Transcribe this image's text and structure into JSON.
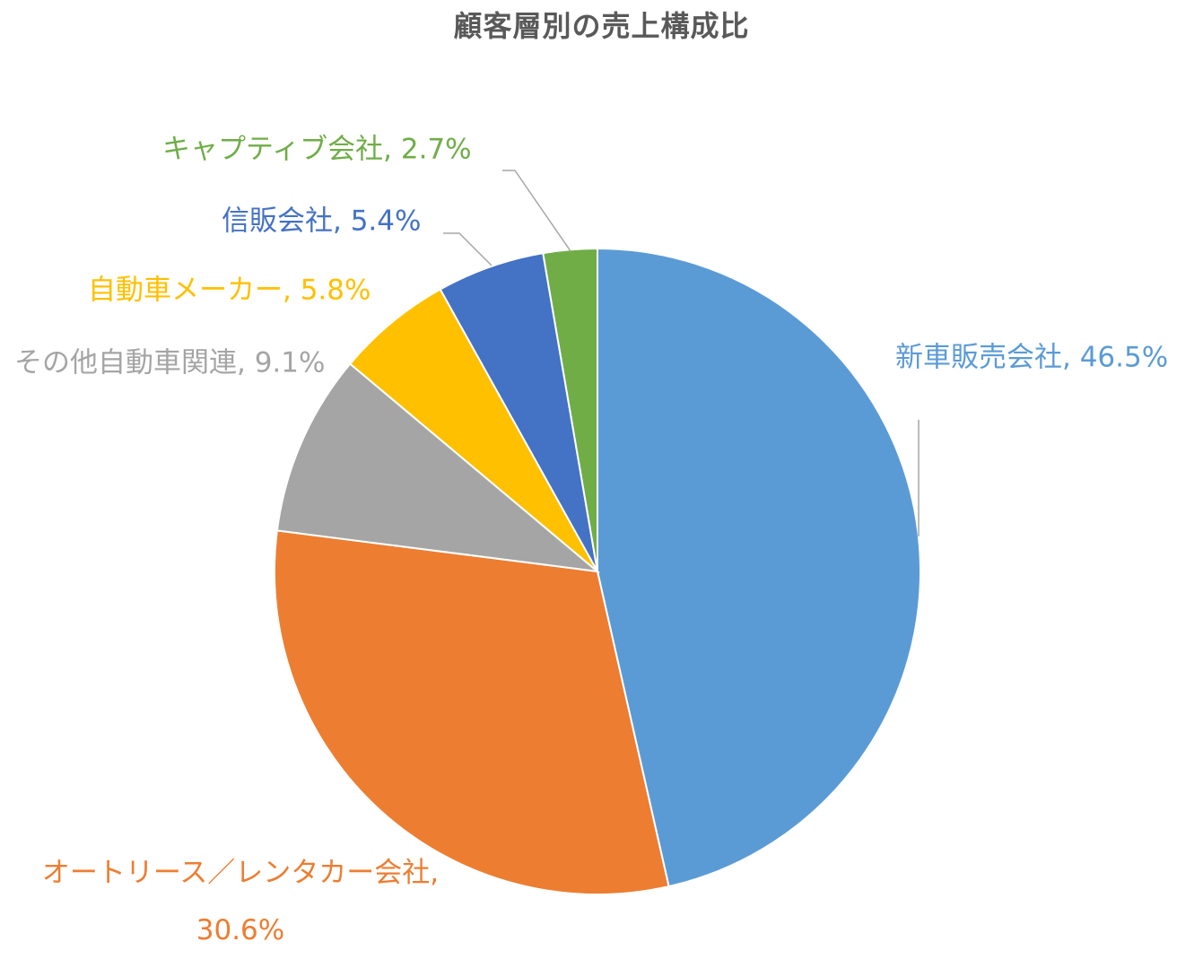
{
  "chart_data": {
    "type": "pie",
    "title": "顧客層別の売上構成比",
    "unit": "%",
    "legend": "none",
    "start_angle_deg": 0,
    "direction": "clockwise",
    "slices": [
      {
        "label": "新車販売会社",
        "value": 46.5,
        "value_text": "46.5%",
        "color": "#5B9BD5"
      },
      {
        "label": "オートリース／レンタカー会社",
        "value": 30.6,
        "value_text": "30.6%",
        "color": "#ED7D31"
      },
      {
        "label": "その他自動車関連",
        "value": 9.1,
        "value_text": "9.1%",
        "color": "#A5A5A5"
      },
      {
        "label": "自動車メーカー",
        "value": 5.8,
        "value_text": "5.8%",
        "color": "#FFC000"
      },
      {
        "label": "信販会社",
        "value": 5.4,
        "value_text": "5.4%",
        "color": "#4472C4"
      },
      {
        "label": "キャプティブ会社",
        "value": 2.7,
        "value_text": "2.7%",
        "color": "#70AD47"
      }
    ]
  }
}
